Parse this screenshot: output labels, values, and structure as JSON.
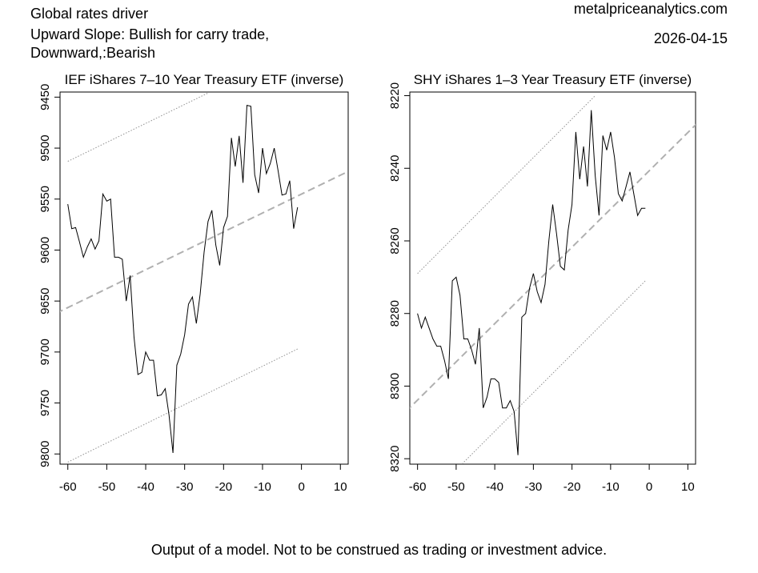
{
  "header": {
    "title_lines": [
      "Global rates driver",
      "Upward Slope: Bullish for carry trade,",
      "Downward,:Bearish"
    ],
    "site": "metalpriceanalytics.com",
    "date": "2026-04-15"
  },
  "footer": {
    "disclaimer": "Output of a model. Not to be construed as trading or investment advice."
  },
  "chart_data": [
    {
      "type": "line",
      "title": "IEF iShares 7–10 Year Treasury ETF (inverse)",
      "xlabel": "",
      "ylabel": "",
      "xlim": [
        -62,
        12
      ],
      "ylim": [
        9810,
        9445
      ],
      "y_inverted": true,
      "x_ticks": [
        -60,
        -50,
        -40,
        -30,
        -20,
        -10,
        0,
        10
      ],
      "y_ticks": [
        9450,
        9500,
        9550,
        9600,
        9650,
        9700,
        9750,
        9800
      ],
      "series": [
        {
          "style": "solid",
          "color": "#000000",
          "x": [
            -60,
            -59,
            -58,
            -57,
            -56,
            -55,
            -54,
            -53,
            -52,
            -51,
            -50,
            -49,
            -48,
            -47,
            -46,
            -45,
            -44,
            -43,
            -42,
            -41,
            -40,
            -39,
            -38,
            -37,
            -36,
            -35,
            -34,
            -33,
            -32,
            -31,
            -30,
            -29,
            -28,
            -27,
            -26,
            -25,
            -24,
            -23,
            -22,
            -21,
            -20,
            -19,
            -18,
            -17,
            -16,
            -15,
            -14,
            -13,
            -12,
            -11,
            -10,
            -9,
            -8,
            -7,
            -6,
            -5,
            -4,
            -3,
            -2,
            -1
          ],
          "y": [
            9555,
            9579,
            9578,
            9592,
            9607,
            9597,
            9589,
            9599,
            9591,
            9545,
            9552,
            9550,
            9607,
            9607,
            9609,
            9650,
            9625,
            9685,
            9722,
            9720,
            9700,
            9708,
            9708,
            9743,
            9742,
            9736,
            9762,
            9799,
            9713,
            9702,
            9683,
            9653,
            9646,
            9672,
            9643,
            9602,
            9572,
            9561,
            9595,
            9615,
            9578,
            9567,
            9490,
            9518,
            9488,
            9534,
            9458,
            9459,
            9526,
            9544,
            9500,
            9525,
            9515,
            9500,
            9522,
            9546,
            9545,
            9532,
            9579,
            9558
          ]
        }
      ],
      "trend_lines": [
        {
          "style": "dashed",
          "color": "#b0b0b0",
          "x": [
            -63,
            13
          ],
          "y": [
            9662,
            9521
          ]
        },
        {
          "style": "dotted",
          "color": "#909090",
          "x": [
            -60,
            -24
          ],
          "y": [
            9513,
            9446
          ]
        },
        {
          "style": "dotted",
          "color": "#909090",
          "x": [
            -60,
            -1
          ],
          "y": [
            9808,
            9697
          ]
        }
      ]
    },
    {
      "type": "line",
      "title": "SHY iShares 1–3 Year Treasury ETF (inverse)",
      "xlabel": "",
      "ylabel": "",
      "xlim": [
        -62,
        12
      ],
      "ylim": [
        8321.5,
        8219
      ],
      "y_inverted": true,
      "x_ticks": [
        -60,
        -50,
        -40,
        -30,
        -20,
        -10,
        0,
        10
      ],
      "y_ticks": [
        8220,
        8240,
        8260,
        8280,
        8300,
        8320
      ],
      "series": [
        {
          "style": "solid",
          "color": "#000000",
          "x": [
            -60,
            -59,
            -58,
            -57,
            -56,
            -55,
            -54,
            -53,
            -52,
            -51,
            -50,
            -49,
            -48,
            -47,
            -46,
            -45,
            -44,
            -43,
            -42,
            -41,
            -40,
            -39,
            -38,
            -37,
            -36,
            -35,
            -34,
            -33,
            -32,
            -31,
            -30,
            -29,
            -28,
            -27,
            -26,
            -25,
            -24,
            -23,
            -22,
            -21,
            -20,
            -19,
            -18,
            -17,
            -16,
            -15,
            -14,
            -13,
            -12,
            -11,
            -10,
            -9,
            -8,
            -7,
            -6,
            -5,
            -4,
            -3,
            -2,
            -1
          ],
          "y": [
            8280,
            8284,
            8281,
            8284,
            8287,
            8289,
            8289,
            8293,
            8298,
            8271,
            8270,
            8275,
            8287,
            8287,
            8290,
            8294,
            8284,
            8306,
            8303,
            8298,
            8298,
            8299,
            8306,
            8306,
            8304,
            8307,
            8319,
            8281,
            8280,
            8273,
            8269,
            8274,
            8277,
            8272,
            8260,
            8250,
            8258,
            8267,
            8268,
            8257,
            8250,
            8230,
            8243,
            8234,
            8245,
            8224,
            8242,
            8253,
            8231,
            8235,
            8230,
            8237,
            8247,
            8249,
            8245,
            8241,
            8247,
            8253,
            8251,
            8251
          ]
        }
      ],
      "trend_lines": [
        {
          "style": "dashed",
          "color": "#b0b0b0",
          "x": [
            -63,
            13
          ],
          "y": [
            8307,
            8227
          ]
        },
        {
          "style": "dotted",
          "color": "#909090",
          "x": [
            -60,
            -14
          ],
          "y": [
            8269,
            8220
          ]
        },
        {
          "style": "dotted",
          "color": "#909090",
          "x": [
            -49,
            -1
          ],
          "y": [
            8322,
            8271
          ]
        }
      ]
    }
  ]
}
